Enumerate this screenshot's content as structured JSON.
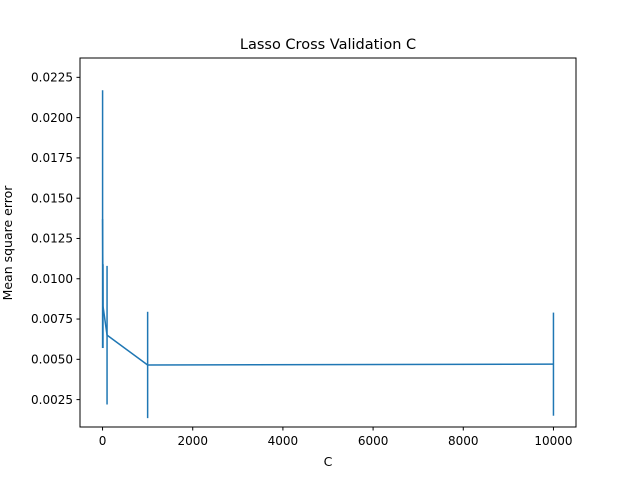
{
  "chart_data": {
    "type": "line",
    "title": "Lasso Cross Validation C",
    "xlabel": "C",
    "ylabel": "Mean square error",
    "xlim": [
      -500,
      10500
    ],
    "ylim": [
      0.0008,
      0.0237
    ],
    "x_ticks": [
      0,
      2000,
      4000,
      6000,
      8000,
      10000
    ],
    "x_tick_labels": [
      "0",
      "2000",
      "4000",
      "6000",
      "8000",
      "10000"
    ],
    "y_ticks": [
      0.0025,
      0.005,
      0.0075,
      0.01,
      0.0125,
      0.015,
      0.0175,
      0.02,
      0.0225
    ],
    "y_tick_labels": [
      "0.0025",
      "0.0050",
      "0.0075",
      "0.0100",
      "0.0125",
      "0.0150",
      "0.0175",
      "0.0200",
      "0.0225"
    ],
    "grid": false,
    "color": "#1f77b4",
    "series": [
      {
        "x": [
          1,
          10,
          100,
          1000,
          10000
        ],
        "y": [
          0.0137,
          0.0083,
          0.0065,
          0.00465,
          0.0047
        ],
        "yerr": [
          0.008,
          0.0026,
          0.0043,
          0.0033,
          0.0032
        ]
      }
    ]
  }
}
